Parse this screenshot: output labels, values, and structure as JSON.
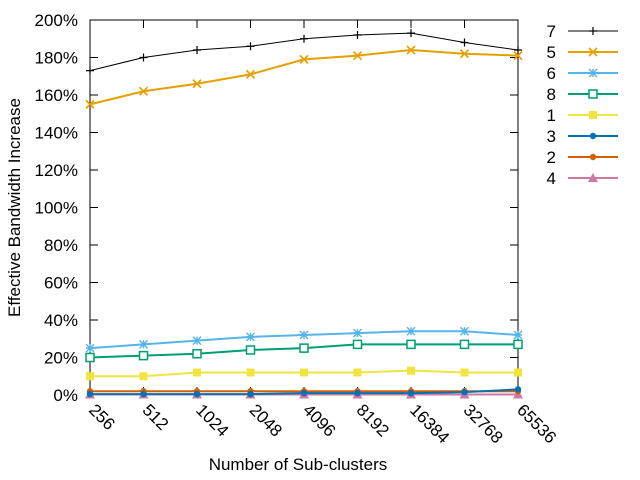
{
  "chart_data": {
    "type": "line",
    "title": "",
    "xlabel": "Number of Sub-clusters",
    "ylabel": "Effective Bandwidth Increase",
    "categories": [
      "256",
      "512",
      "1024",
      "2048",
      "4096",
      "8192",
      "16384",
      "32768",
      "65536"
    ],
    "ylim": [
      0,
      200
    ],
    "yticks": [
      "0%",
      "20%",
      "40%",
      "60%",
      "80%",
      "100%",
      "120%",
      "140%",
      "160%",
      "180%",
      "200%"
    ],
    "grid": false,
    "legend_position": "right",
    "series": [
      {
        "name": "7",
        "color": "#000000",
        "marker": "plus",
        "values": [
          173,
          180,
          184,
          186,
          190,
          192,
          193,
          188,
          184
        ]
      },
      {
        "name": "5",
        "color": "#E69F00",
        "marker": "cross",
        "values": [
          155,
          162,
          166,
          171,
          179,
          181,
          184,
          182,
          181
        ]
      },
      {
        "name": "6",
        "color": "#56B4E9",
        "marker": "star",
        "values": [
          25,
          27,
          29,
          31,
          32,
          33,
          34,
          34,
          32
        ]
      },
      {
        "name": "8",
        "color": "#009E73",
        "marker": "open-square",
        "values": [
          20,
          21,
          22,
          24,
          25,
          27,
          27,
          27,
          27
        ]
      },
      {
        "name": "1",
        "color": "#F0E442",
        "marker": "filled-square",
        "values": [
          10,
          10,
          12,
          12,
          12,
          12,
          13,
          12,
          12
        ]
      },
      {
        "name": "3",
        "color": "#0072B2",
        "marker": "filled-circle",
        "values": [
          0.5,
          0.5,
          0.5,
          0.5,
          1,
          1,
          1,
          1.5,
          3
        ]
      },
      {
        "name": "2",
        "color": "#D55E00",
        "marker": "filled-circle",
        "values": [
          2,
          2,
          2,
          2,
          2,
          2,
          2,
          2,
          2
        ]
      },
      {
        "name": "4",
        "color": "#CC79A7",
        "marker": "triangle",
        "values": [
          0.3,
          0.3,
          0.3,
          0.3,
          0.3,
          0.3,
          0.3,
          0.3,
          0.3
        ]
      }
    ]
  }
}
